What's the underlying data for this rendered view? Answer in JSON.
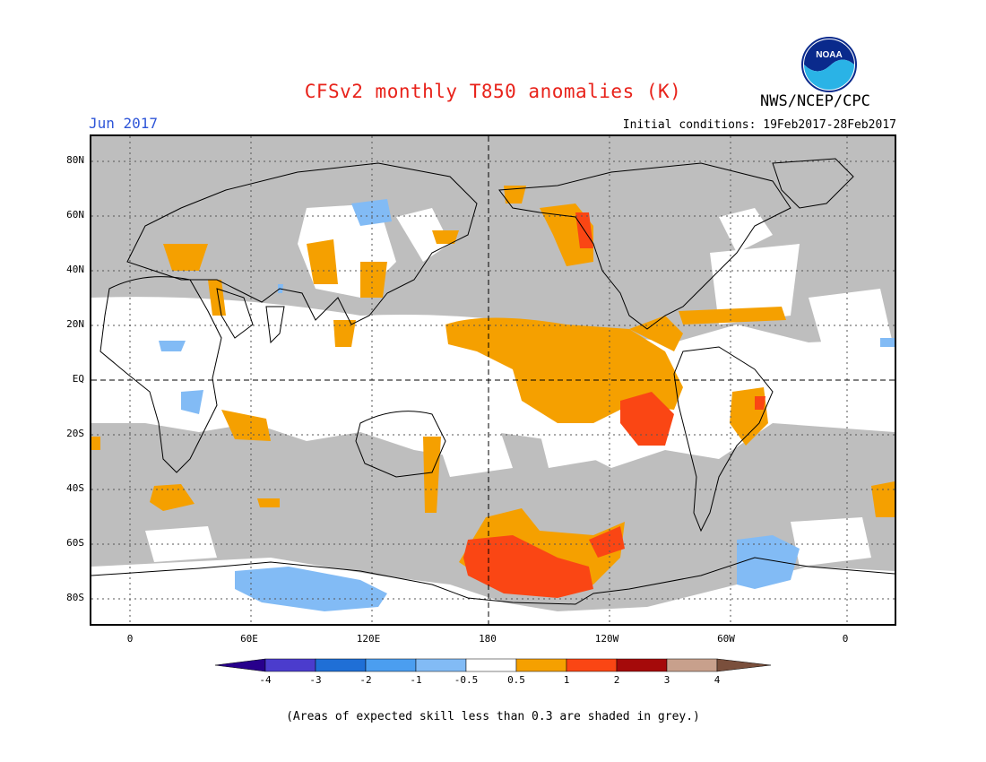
{
  "title": "CFSv2 monthly T850 anomalies (K)",
  "month": "Jun 2017",
  "initial_conditions": "Initial conditions: 19Feb2017-28Feb2017",
  "agency": "NWS/NCEP/CPC",
  "logo_text": "NOAA",
  "lat_labels": [
    "80N",
    "60N",
    "40N",
    "20N",
    "EQ",
    "20S",
    "40S",
    "60S",
    "80S"
  ],
  "lon_labels": [
    "0",
    "60E",
    "120E",
    "180",
    "120W",
    "60W",
    "0"
  ],
  "colorbar": {
    "labels": [
      "-4",
      "-3",
      "-2",
      "-1",
      "-0.5",
      "0.5",
      "1",
      "2",
      "3",
      "4"
    ],
    "colors": {
      "lt_m4": "#28008c",
      "m4_m3": "#4b3ccd",
      "m3_m2": "#1f6fd6",
      "m2_m1": "#4b9ef0",
      "m1_m05": "#82bbf5",
      "m05_05": "#ffffff",
      "p05_1": "#f5a000",
      "p1_2": "#fa4614",
      "p2_3": "#a50a0a",
      "p3_4": "#c8a08c",
      "gt_4": "#7a4f3c"
    }
  },
  "note": "(Areas of expected skill less than 0.3 are shaded in grey.)",
  "map_colors": {
    "grey": "#bebebe",
    "land_line": "#000000"
  }
}
